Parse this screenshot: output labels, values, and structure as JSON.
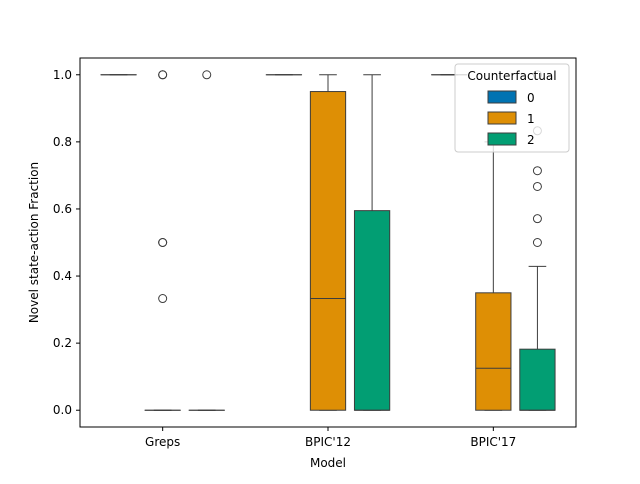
{
  "chart_data": {
    "type": "box",
    "title": "",
    "xlabel": "Model",
    "ylabel": "Novel state-action Fraction",
    "ylim": [
      -0.05,
      1.05
    ],
    "yticks": [
      "0.0",
      "0.2",
      "0.4",
      "0.6",
      "0.8",
      "1.0"
    ],
    "categories": [
      "Greps",
      "BPIC'12",
      "BPIC'17"
    ],
    "legend": {
      "title": "Counterfactual",
      "placement": "top-right"
    },
    "series": [
      {
        "name": "0",
        "color": "#0173b2",
        "boxes": [
          {
            "q1": 1.0,
            "median": 1.0,
            "q3": 1.0,
            "whisker_low": 1.0,
            "whisker_high": 1.0,
            "outliers": []
          },
          {
            "q1": 1.0,
            "median": 1.0,
            "q3": 1.0,
            "whisker_low": 1.0,
            "whisker_high": 1.0,
            "outliers": []
          },
          {
            "q1": 1.0,
            "median": 1.0,
            "q3": 1.0,
            "whisker_low": 1.0,
            "whisker_high": 1.0,
            "outliers": []
          }
        ]
      },
      {
        "name": "1",
        "color": "#de8f05",
        "boxes": [
          {
            "q1": 0.0,
            "median": 0.0,
            "q3": 0.0,
            "whisker_low": 0.0,
            "whisker_high": 0.0,
            "outliers": [
              1.0,
              1.0,
              0.5,
              0.5,
              0.333
            ]
          },
          {
            "q1": 0.0,
            "median": 0.333,
            "q3": 0.95,
            "whisker_low": 0.0,
            "whisker_high": 1.0,
            "outliers": []
          },
          {
            "q1": 0.0,
            "median": 0.125,
            "q3": 0.35,
            "whisker_low": 0.0,
            "whisker_high": 0.8,
            "outliers": []
          }
        ]
      },
      {
        "name": "2",
        "color": "#029e73",
        "boxes": [
          {
            "q1": 0.0,
            "median": 0.0,
            "q3": 0.0,
            "whisker_low": 0.0,
            "whisker_high": 0.0,
            "outliers": [
              1.0
            ]
          },
          {
            "q1": 0.0,
            "median": 0.0,
            "q3": 0.595,
            "whisker_low": 0.0,
            "whisker_high": 1.0,
            "outliers": []
          },
          {
            "q1": 0.0,
            "median": 0.0,
            "q3": 0.182,
            "whisker_low": 0.0,
            "whisker_high": 0.429,
            "outliers": [
              0.5,
              0.571,
              0.667,
              0.714,
              0.833,
              1.0
            ]
          }
        ]
      }
    ]
  }
}
